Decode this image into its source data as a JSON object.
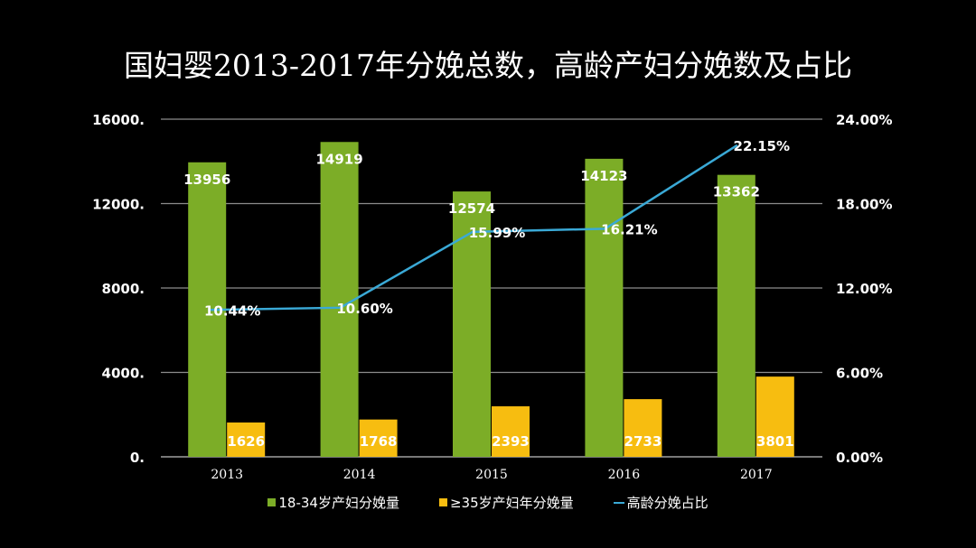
{
  "chart_data": {
    "type": "bar",
    "title": "国妇婴2013-2017年分娩总数，高龄产妇分娩数及占比",
    "categories": [
      "2013",
      "2014",
      "2015",
      "2016",
      "2017"
    ],
    "series": [
      {
        "name": "18-34岁产妇分娩量",
        "type": "bar",
        "axis": "left",
        "color": "#7cad27",
        "values": [
          13956,
          14919,
          12574,
          14123,
          13362
        ],
        "labels": [
          "13956",
          "14919",
          "12574",
          "14123",
          "13362"
        ]
      },
      {
        "name": "≥35岁产妇年分娩量",
        "type": "bar",
        "axis": "left",
        "color": "#f7bd10",
        "values": [
          1626,
          1768,
          2393,
          2733,
          3801
        ],
        "labels": [
          "1626",
          "1768",
          "2393",
          "2733",
          "3801"
        ]
      },
      {
        "name": "高龄分娩占比",
        "type": "line",
        "axis": "right",
        "color": "#3aa9d6",
        "values": [
          10.44,
          10.6,
          15.99,
          16.21,
          22.15
        ],
        "labels": [
          "10.44%",
          "10.60%",
          "15.99%",
          "16.21%",
          "22.15%"
        ]
      }
    ],
    "ylim": [
      0,
      16000
    ],
    "yticks": [
      "0.",
      "4000.",
      "8000.",
      "12000.",
      "16000."
    ],
    "y2lim": [
      0,
      24
    ],
    "y2ticks": [
      "0.00%",
      "6.00%",
      "12.00%",
      "18.00%",
      "24.00%"
    ],
    "grid": true,
    "legend": "bottom"
  }
}
